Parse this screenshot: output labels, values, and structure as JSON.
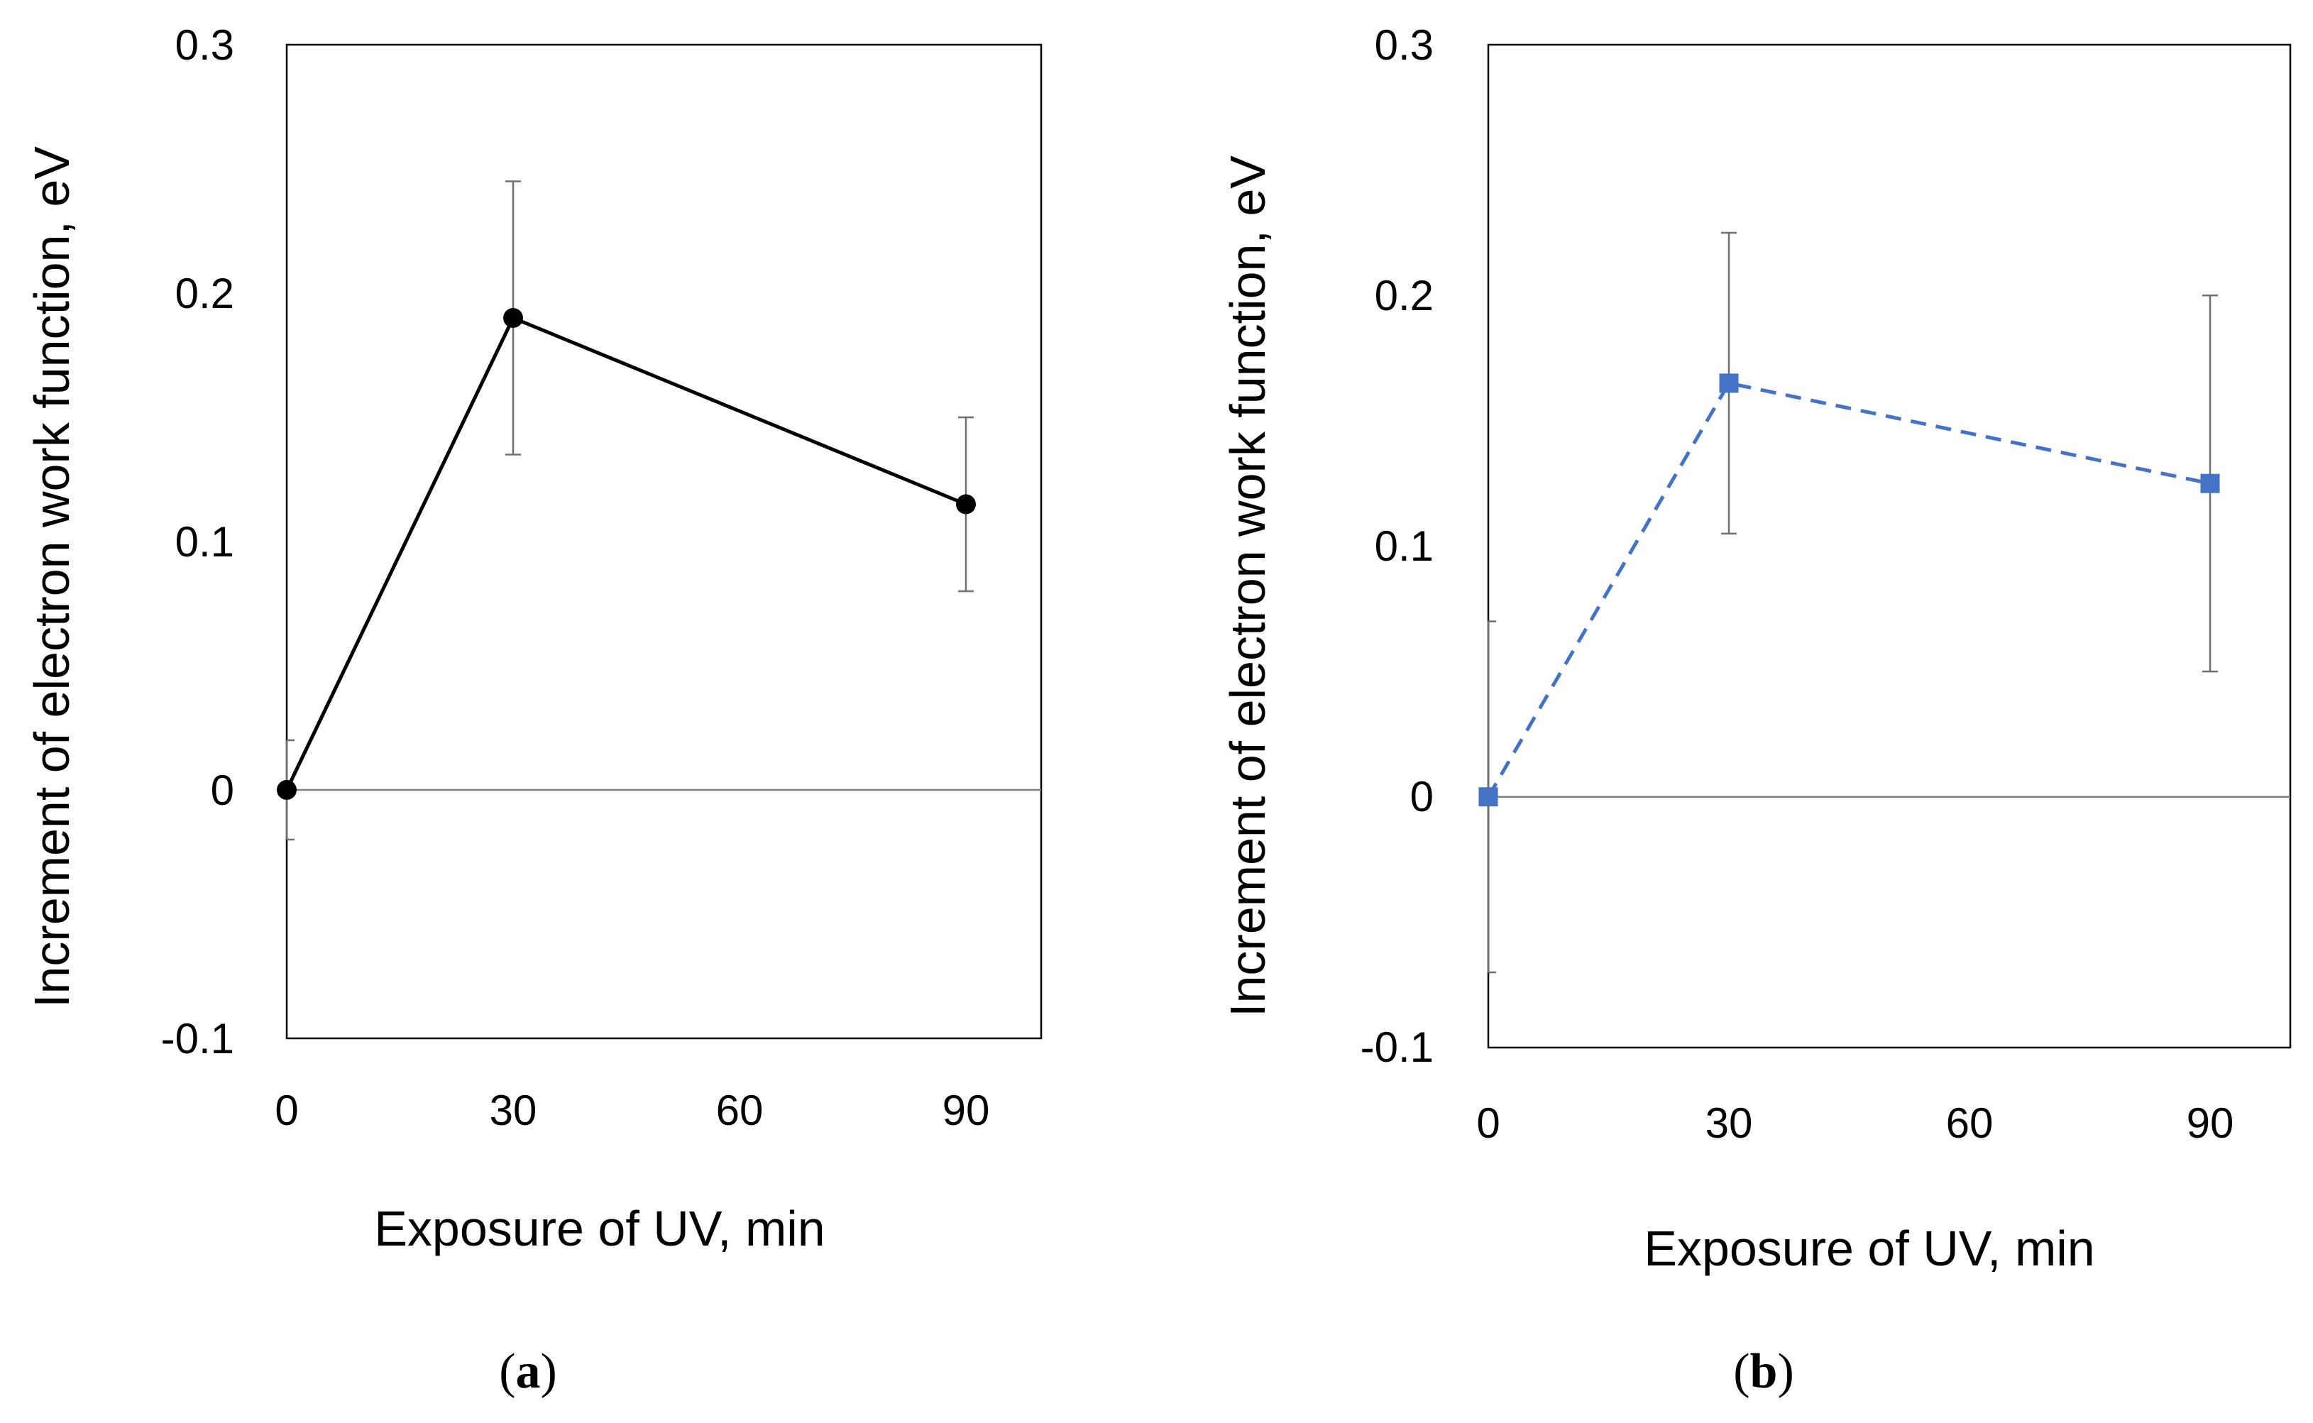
{
  "chart_data": [
    {
      "type": "line",
      "panel_label": "a",
      "xlabel": "Exposure of UV, min",
      "ylabel": "Increment of electron work function, eV",
      "x_ticks": [
        "0",
        "30",
        "60",
        "90"
      ],
      "y_ticks": [
        "-0.1",
        "0",
        "0.1",
        "0.2",
        "0.3"
      ],
      "xlim": [
        0,
        100
      ],
      "ylim": [
        -0.1,
        0.3
      ],
      "grid": false,
      "series": [
        {
          "name": "a",
          "color": "#000000",
          "marker": "circle",
          "line_style": "solid",
          "x": [
            0,
            30,
            90
          ],
          "y": [
            0.0,
            0.19,
            0.115
          ],
          "error": [
            0.02,
            0.055,
            0.035
          ]
        }
      ]
    },
    {
      "type": "line",
      "panel_label": "b",
      "xlabel": "Exposure of UV, min",
      "ylabel": "Increment of electron work function, eV",
      "x_ticks": [
        "0",
        "30",
        "60",
        "90"
      ],
      "y_ticks": [
        "-0.1",
        "0",
        "0.1",
        "0.2",
        "0.3"
      ],
      "xlim": [
        0,
        100
      ],
      "ylim": [
        -0.1,
        0.3
      ],
      "grid": false,
      "series": [
        {
          "name": "b",
          "color": "#4472C4",
          "marker": "square",
          "line_style": "dashed",
          "x": [
            0,
            30,
            90
          ],
          "y": [
            0.0,
            0.165,
            0.125
          ],
          "error": [
            0.07,
            0.06,
            0.075
          ]
        }
      ]
    }
  ]
}
